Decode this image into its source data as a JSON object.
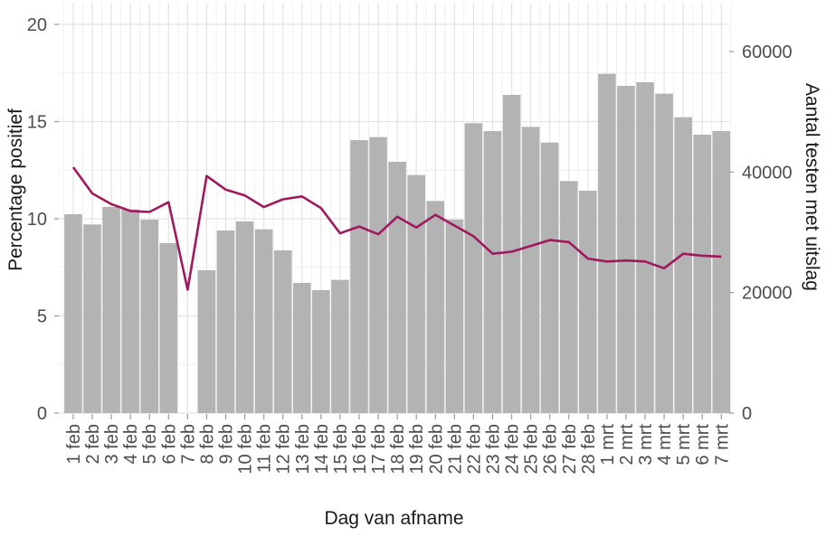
{
  "chart_data": {
    "type": "bar",
    "subtype": "dual-axis bar + line",
    "title": "",
    "xlabel": "Dag van afname",
    "ylabel_left": "Percentage positief",
    "ylabel_right": "Aantal testen met uitslag",
    "grid": "on",
    "legend": "none",
    "categories": [
      "1 feb",
      "2 feb",
      "3 feb",
      "4 feb",
      "5 feb",
      "6 feb",
      "7 feb",
      "8 feb",
      "9 feb",
      "10 feb",
      "11 feb",
      "12 feb",
      "13 feb",
      "14 feb",
      "15 feb",
      "16 feb",
      "17 feb",
      "18 feb",
      "19 feb",
      "20 feb",
      "21 feb",
      "22 feb",
      "23 feb",
      "24 feb",
      "25 feb",
      "26 feb",
      "27 feb",
      "28 feb",
      "1 mrt",
      "2 mrt",
      "3 mrt",
      "4 mrt",
      "5 mrt",
      "6 mrt",
      "7 mrt"
    ],
    "series": [
      {
        "name": "Aantal testen met uitslag",
        "type": "bar",
        "axis": "right",
        "values": [
          33000,
          31300,
          34200,
          33800,
          32100,
          28200,
          0,
          23700,
          30300,
          31800,
          30500,
          27000,
          21600,
          20400,
          22100,
          45300,
          45800,
          41700,
          39500,
          35200,
          32100,
          48100,
          46800,
          52800,
          47500,
          44900,
          38500,
          36900,
          56300,
          54300,
          54900,
          53000,
          49100,
          46200,
          46800
        ]
      },
      {
        "name": "Percentage positief",
        "type": "line",
        "axis": "left",
        "values": [
          12.65,
          11.3,
          10.75,
          10.4,
          10.35,
          10.85,
          6.35,
          12.2,
          11.5,
          11.2,
          10.6,
          11.0,
          11.15,
          10.55,
          9.25,
          9.6,
          9.2,
          10.1,
          9.55,
          10.2,
          9.65,
          9.1,
          8.2,
          8.3,
          8.6,
          8.9,
          8.8,
          7.95,
          7.8,
          7.85,
          7.8,
          7.45,
          8.2,
          8.1,
          8.05
        ]
      }
    ],
    "left_axis": {
      "ticks": [
        0,
        5,
        10,
        15,
        20
      ],
      "tick_labels": [
        "0",
        "5",
        "10",
        "15",
        "20"
      ],
      "range": [
        0,
        21.3
      ]
    },
    "right_axis": {
      "ticks": [
        0,
        20000,
        40000,
        60000
      ],
      "tick_labels": [
        "0",
        "20000",
        "40000",
        "60000"
      ],
      "range": [
        0,
        68700
      ]
    },
    "colors": {
      "bar": "#b3b3b3",
      "line": "#a0195f",
      "grid_major": "#e3e3e3",
      "grid_minor": "#efefef",
      "tick_mark": "#9a9a9a",
      "tick_text": "#4d4d4d",
      "title_text": "#1a1a1a",
      "background": "#ffffff"
    }
  }
}
